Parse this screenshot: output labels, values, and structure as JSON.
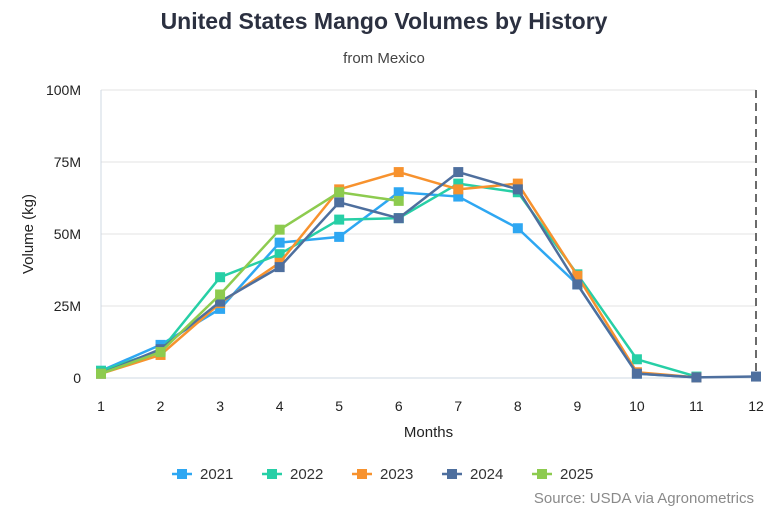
{
  "chart_data": {
    "type": "line",
    "title": "United States Mango Volumes by History",
    "subtitle": "from Mexico",
    "xlabel": "Months",
    "ylabel": "Volume (kg)",
    "x": [
      1,
      2,
      3,
      4,
      5,
      6,
      7,
      8,
      9,
      10,
      11,
      12
    ],
    "x_tick_labels": [
      "1",
      "2",
      "3",
      "4",
      "5",
      "6",
      "7",
      "8",
      "9",
      "10",
      "11",
      "12"
    ],
    "ylim": [
      0,
      100000000
    ],
    "y_ticks": [
      0,
      25000000,
      50000000,
      75000000,
      100000000
    ],
    "y_tick_labels": [
      "0",
      "25M",
      "50M",
      "75M",
      "100M"
    ],
    "grid": "horizontal",
    "legend_position": "bottom",
    "series": [
      {
        "name": "2021",
        "color": "#2ea7f2",
        "values": [
          2500000.0,
          11500000.0,
          24000000.0,
          47000000.0,
          49000000.0,
          64500000.0,
          63000000.0,
          52000000.0,
          32500000.0,
          1500000.0,
          200000.0,
          null
        ]
      },
      {
        "name": "2022",
        "color": "#27cfa6",
        "values": [
          2500000.0,
          9500000.0,
          35000000.0,
          43000000.0,
          55000000.0,
          55500000.0,
          67500000.0,
          64500000.0,
          36000000.0,
          6500000.0,
          500000.0,
          null
        ]
      },
      {
        "name": "2023",
        "color": "#f7922e",
        "values": [
          1500000.0,
          8000000.0,
          26000000.0,
          40000000.0,
          65500000.0,
          71500000.0,
          65500000.0,
          67500000.0,
          35500000.0,
          2000000.0,
          200000.0,
          null
        ]
      },
      {
        "name": "2024",
        "color": "#4e6f9e",
        "values": [
          1500000.0,
          10000000.0,
          26500000.0,
          38500000.0,
          61000000.0,
          55500000.0,
          71500000.0,
          65500000.0,
          32500000.0,
          1500000.0,
          200000.0,
          500000.0
        ]
      },
      {
        "name": "2025",
        "color": "#8dcb4f",
        "values": [
          1500000.0,
          9000000.0,
          29000000.0,
          51500000.0,
          64500000.0,
          61500000.0,
          null,
          null,
          null,
          null,
          null,
          null
        ]
      }
    ],
    "annotations": [
      {
        "type": "dashed-vertical-line",
        "x": 12
      }
    ],
    "source": "Source: USDA via Agronometrics"
  }
}
